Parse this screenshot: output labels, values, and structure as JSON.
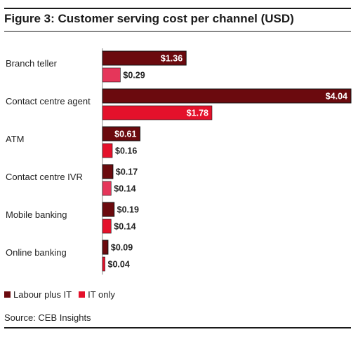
{
  "figure": {
    "title": "Figure 3: Customer serving cost per channel (USD)",
    "source": "Source: CEB Insights"
  },
  "colors": {
    "labour_plus_it": "#6b0a0e",
    "it_only_dark": "#e4112b",
    "it_only_light": "#e5365a",
    "outline": "#111111"
  },
  "chart_data": {
    "type": "bar",
    "orientation": "horizontal",
    "title": "Figure 3: Customer serving cost per channel (USD)",
    "categories": [
      "Branch teller",
      "Contact centre agent",
      "ATM",
      "Contact centre IVR",
      "Mobile banking",
      "Online banking"
    ],
    "series": [
      {
        "name": "Labour plus IT",
        "values": [
          1.36,
          4.04,
          0.61,
          0.17,
          0.19,
          0.09
        ],
        "labels": [
          "$1.36",
          "$4.04",
          "$0.61",
          "$0.17",
          "$0.19",
          "$0.09"
        ],
        "label_position": [
          "inside",
          "inside",
          "inside",
          "outside",
          "outside",
          "outside"
        ]
      },
      {
        "name": "IT only",
        "values": [
          0.29,
          1.78,
          0.16,
          0.14,
          0.14,
          0.04
        ],
        "labels": [
          "$0.29",
          "$1.78",
          "$0.16",
          "$0.14",
          "$0.14",
          "$0.04"
        ],
        "label_position": [
          "outside",
          "inside",
          "outside",
          "outside",
          "outside",
          "outside"
        ]
      }
    ],
    "xlim": [
      0,
      4.04
    ],
    "grid": false,
    "legend_position": "bottom-left"
  }
}
